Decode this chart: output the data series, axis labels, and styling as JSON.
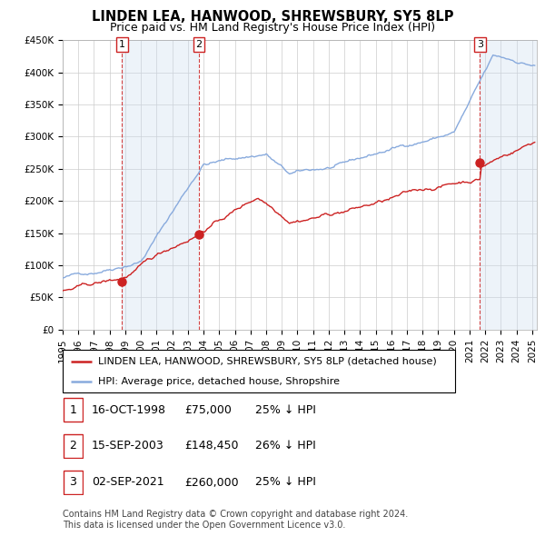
{
  "title": "LINDEN LEA, HANWOOD, SHREWSBURY, SY5 8LP",
  "subtitle": "Price paid vs. HM Land Registry's House Price Index (HPI)",
  "ylim": [
    0,
    450000
  ],
  "xlim_start": 1995.0,
  "xlim_end": 2025.3,
  "yticks": [
    0,
    50000,
    100000,
    150000,
    200000,
    250000,
    300000,
    350000,
    400000,
    450000
  ],
  "ytick_labels": [
    "£0",
    "£50K",
    "£100K",
    "£150K",
    "£200K",
    "£250K",
    "£300K",
    "£350K",
    "£400K",
    "£450K"
  ],
  "xticks": [
    1995,
    1996,
    1997,
    1998,
    1999,
    2000,
    2001,
    2002,
    2003,
    2004,
    2005,
    2006,
    2007,
    2008,
    2009,
    2010,
    2011,
    2012,
    2013,
    2014,
    2015,
    2016,
    2017,
    2018,
    2019,
    2020,
    2021,
    2022,
    2023,
    2024,
    2025
  ],
  "red_line_color": "#cc2222",
  "blue_line_color": "#88aadd",
  "marker_color": "#cc2222",
  "grid_color": "#cccccc",
  "background_color": "#ffffff",
  "shading_color": "#ccddf0",
  "dashed_line_color": "#cc2222",
  "purchases": [
    {
      "label": "1",
      "date_x": 1998.79,
      "price": 75000
    },
    {
      "label": "2",
      "date_x": 2003.71,
      "price": 148450
    },
    {
      "label": "3",
      "date_x": 2021.67,
      "price": 260000
    }
  ],
  "table_rows": [
    {
      "num": "1",
      "date": "16-OCT-1998",
      "price": "£75,000",
      "hpi": "25% ↓ HPI"
    },
    {
      "num": "2",
      "date": "15-SEP-2003",
      "price": "£148,450",
      "hpi": "26% ↓ HPI"
    },
    {
      "num": "3",
      "date": "02-SEP-2021",
      "price": "£260,000",
      "hpi": "25% ↓ HPI"
    }
  ],
  "legend_entries": [
    {
      "label": "LINDEN LEA, HANWOOD, SHREWSBURY, SY5 8LP (detached house)",
      "color": "#cc2222"
    },
    {
      "label": "HPI: Average price, detached house, Shropshire",
      "color": "#88aadd"
    }
  ],
  "footnote": "Contains HM Land Registry data © Crown copyright and database right 2024.\nThis data is licensed under the Open Government Licence v3.0.",
  "title_fontsize": 10.5,
  "subtitle_fontsize": 9,
  "tick_fontsize": 7.5,
  "legend_fontsize": 8,
  "table_fontsize": 9,
  "footnote_fontsize": 7
}
